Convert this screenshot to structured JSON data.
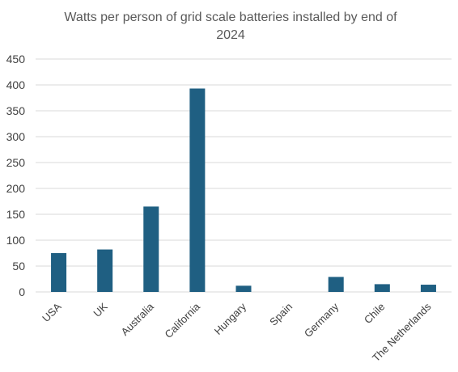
{
  "chart_data": {
    "type": "bar",
    "title_line1": "Watts per person of grid scale batteries installed by end of",
    "title_line2": "2024",
    "categories": [
      "USA",
      "UK",
      "Australia",
      "California",
      "Hungary",
      "Spain",
      "Germany",
      "Chile",
      "The Netherlands"
    ],
    "values": [
      75,
      82,
      165,
      393,
      12,
      0,
      29,
      15,
      14
    ],
    "ylim": [
      0,
      450
    ],
    "yticks": [
      0,
      50,
      100,
      150,
      200,
      250,
      300,
      350,
      400,
      450
    ],
    "grid": true,
    "bar_color": "#1f5f82",
    "grid_color": "#d9d9d9"
  }
}
